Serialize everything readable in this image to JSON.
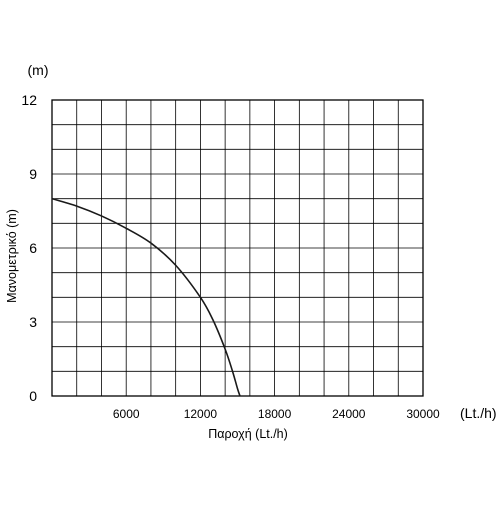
{
  "chart_data": {
    "type": "line",
    "title": "",
    "xlabel": "Παροχή (Lt./h)",
    "ylabel": "Μανομετρικό (m)",
    "x_unit": "(Lt./h)",
    "y_unit": "(m)",
    "xlim": [
      0,
      30000
    ],
    "ylim": [
      0,
      12
    ],
    "x_tick_labels": [
      "6000",
      "12000",
      "18000",
      "24000",
      "30000"
    ],
    "y_tick_labels": [
      "0",
      "3",
      "6",
      "9",
      "12"
    ],
    "grid": true,
    "x_minor_step": 2000,
    "y_minor_step": 1,
    "series": [
      {
        "x": [
          0,
          2000,
          4000,
          6000,
          8000,
          10000,
          12000,
          13000,
          14000,
          14600,
          15000,
          15200
        ],
        "y": [
          8.0,
          7.7,
          7.3,
          6.8,
          6.2,
          5.3,
          4.0,
          3.1,
          1.9,
          1.0,
          0.3,
          0
        ],
        "color": "#1a1a1a"
      }
    ]
  }
}
